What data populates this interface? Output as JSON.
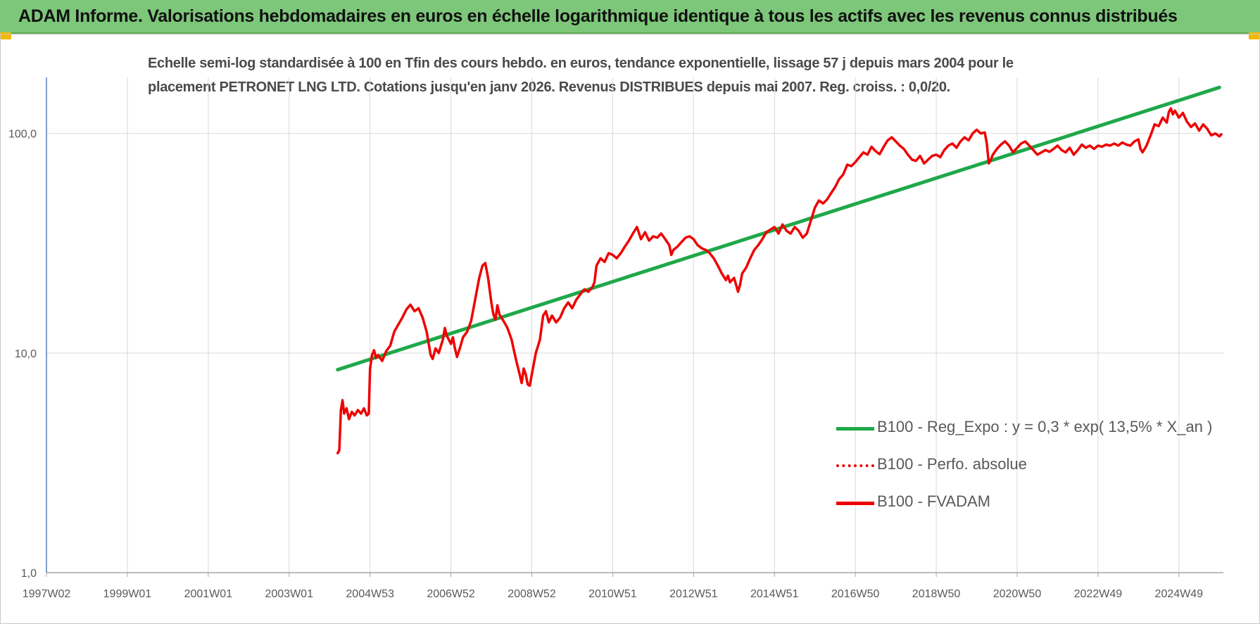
{
  "header": {
    "title": "ADAM Informe. Valorisations hebdomadaires en euros en échelle logarithmique identique à tous les actifs avec les revenus connus distribués",
    "background": "#7dc77a"
  },
  "chart_data": {
    "type": "line",
    "title_lines": [
      "Echelle semi-log standardisée à 100 en Tfin des cours hebdo. en euros, tendance exponentielle, lissage 57 j depuis mars 2004 pour le",
      "placement PETRONET LNG LTD. Cotations jusqu'en janv 2026. Revenus DISTRIBUES depuis mai 2007. Reg. croiss. : 0,0/20."
    ],
    "y_scale": "log",
    "ylim": [
      1,
      180
    ],
    "y_ticks": [
      {
        "value": 1,
        "label": "1,0"
      },
      {
        "value": 10,
        "label": "10,0"
      },
      {
        "value": 100,
        "label": "100,0"
      }
    ],
    "xlim": [
      1997.0,
      2026.1
    ],
    "x_ticks": [
      {
        "value": 1997.0,
        "label": "1997W02"
      },
      {
        "value": 1999.0,
        "label": "1999W01"
      },
      {
        "value": 2001.0,
        "label": "2001W01"
      },
      {
        "value": 2003.0,
        "label": "2003W01"
      },
      {
        "value": 2005.0,
        "label": "2004W53"
      },
      {
        "value": 2007.0,
        "label": "2006W52"
      },
      {
        "value": 2009.0,
        "label": "2008W52"
      },
      {
        "value": 2011.0,
        "label": "2010W51"
      },
      {
        "value": 2013.0,
        "label": "2012W51"
      },
      {
        "value": 2015.0,
        "label": "2014W51"
      },
      {
        "value": 2017.0,
        "label": "2016W50"
      },
      {
        "value": 2019.0,
        "label": "2018W50"
      },
      {
        "value": 2021.0,
        "label": "2020W50"
      },
      {
        "value": 2023.0,
        "label": "2022W49"
      },
      {
        "value": 2025.0,
        "label": "2024W49"
      }
    ],
    "grid": "vertical",
    "legend_position": "bottom-right",
    "series": [
      {
        "name": "B100 - Reg_Expo : y = 0,3 * exp( 13,5% * X_an )",
        "color": "#1fa84a",
        "style": "solid",
        "points": [
          [
            2004.2,
            8.4
          ],
          [
            2026.0,
            162
          ]
        ]
      },
      {
        "name": "B100 - Perfo. absolue",
        "color": "#ee0000",
        "style": "dotted",
        "points": []
      },
      {
        "name": "B100 - FVADAM",
        "color": "#ee0000",
        "style": "solid",
        "points": [
          [
            2004.2,
            3.5
          ],
          [
            2004.24,
            3.6
          ],
          [
            2004.28,
            5.5
          ],
          [
            2004.32,
            6.1
          ],
          [
            2004.36,
            5.3
          ],
          [
            2004.42,
            5.6
          ],
          [
            2004.48,
            5.0
          ],
          [
            2004.55,
            5.4
          ],
          [
            2004.62,
            5.2
          ],
          [
            2004.7,
            5.5
          ],
          [
            2004.78,
            5.3
          ],
          [
            2004.85,
            5.6
          ],
          [
            2004.92,
            5.2
          ],
          [
            2004.97,
            5.3
          ],
          [
            2005.0,
            8.5
          ],
          [
            2005.05,
            9.8
          ],
          [
            2005.1,
            10.3
          ],
          [
            2005.15,
            9.5
          ],
          [
            2005.2,
            9.8
          ],
          [
            2005.3,
            9.2
          ],
          [
            2005.4,
            10.2
          ],
          [
            2005.5,
            10.8
          ],
          [
            2005.6,
            12.5
          ],
          [
            2005.7,
            13.5
          ],
          [
            2005.8,
            14.5
          ],
          [
            2005.9,
            15.8
          ],
          [
            2006.0,
            16.6
          ],
          [
            2006.1,
            15.5
          ],
          [
            2006.2,
            16.0
          ],
          [
            2006.3,
            14.5
          ],
          [
            2006.4,
            12.5
          ],
          [
            2006.5,
            9.8
          ],
          [
            2006.55,
            9.4
          ],
          [
            2006.62,
            10.5
          ],
          [
            2006.7,
            10.0
          ],
          [
            2006.8,
            11.5
          ],
          [
            2006.85,
            13.0
          ],
          [
            2006.9,
            12.0
          ],
          [
            2007.0,
            11.0
          ],
          [
            2007.05,
            11.8
          ],
          [
            2007.1,
            10.5
          ],
          [
            2007.15,
            9.6
          ],
          [
            2007.22,
            10.5
          ],
          [
            2007.3,
            11.8
          ],
          [
            2007.4,
            12.5
          ],
          [
            2007.5,
            14.0
          ],
          [
            2007.6,
            17.5
          ],
          [
            2007.7,
            22.0
          ],
          [
            2007.78,
            25.0
          ],
          [
            2007.85,
            25.7
          ],
          [
            2007.92,
            22.0
          ],
          [
            2008.0,
            17.0
          ],
          [
            2008.05,
            15.0
          ],
          [
            2008.1,
            14.2
          ],
          [
            2008.15,
            16.5
          ],
          [
            2008.2,
            15.0
          ],
          [
            2008.3,
            14.0
          ],
          [
            2008.4,
            13.0
          ],
          [
            2008.5,
            11.5
          ],
          [
            2008.6,
            9.5
          ],
          [
            2008.7,
            8.0
          ],
          [
            2008.75,
            7.3
          ],
          [
            2008.8,
            8.5
          ],
          [
            2008.85,
            8.0
          ],
          [
            2008.9,
            7.2
          ],
          [
            2008.95,
            7.1
          ],
          [
            2009.0,
            8.0
          ],
          [
            2009.1,
            10.0
          ],
          [
            2009.2,
            11.5
          ],
          [
            2009.28,
            14.8
          ],
          [
            2009.35,
            15.5
          ],
          [
            2009.42,
            13.8
          ],
          [
            2009.5,
            14.8
          ],
          [
            2009.6,
            13.8
          ],
          [
            2009.7,
            14.5
          ],
          [
            2009.8,
            16.0
          ],
          [
            2009.9,
            17.0
          ],
          [
            2010.0,
            16.0
          ],
          [
            2010.1,
            17.5
          ],
          [
            2010.2,
            18.5
          ],
          [
            2010.3,
            19.5
          ],
          [
            2010.4,
            19.0
          ],
          [
            2010.5,
            20.0
          ],
          [
            2010.55,
            21.0
          ],
          [
            2010.6,
            25.0
          ],
          [
            2010.7,
            27.0
          ],
          [
            2010.8,
            26.0
          ],
          [
            2010.9,
            28.5
          ],
          [
            2011.0,
            28.0
          ],
          [
            2011.1,
            27.0
          ],
          [
            2011.2,
            28.5
          ],
          [
            2011.3,
            30.5
          ],
          [
            2011.4,
            32.5
          ],
          [
            2011.5,
            35.0
          ],
          [
            2011.6,
            37.5
          ],
          [
            2011.7,
            33.0
          ],
          [
            2011.8,
            35.5
          ],
          [
            2011.9,
            32.5
          ],
          [
            2012.0,
            34.0
          ],
          [
            2012.1,
            33.5
          ],
          [
            2012.2,
            35.0
          ],
          [
            2012.3,
            33.0
          ],
          [
            2012.4,
            31.0
          ],
          [
            2012.45,
            28.0
          ],
          [
            2012.5,
            29.5
          ],
          [
            2012.6,
            30.5
          ],
          [
            2012.7,
            32.0
          ],
          [
            2012.8,
            33.5
          ],
          [
            2012.9,
            34.0
          ],
          [
            2013.0,
            33.0
          ],
          [
            2013.1,
            31.0
          ],
          [
            2013.2,
            30.0
          ],
          [
            2013.3,
            29.5
          ],
          [
            2013.4,
            28.5
          ],
          [
            2013.5,
            27.0
          ],
          [
            2013.6,
            25.0
          ],
          [
            2013.7,
            23.0
          ],
          [
            2013.8,
            21.5
          ],
          [
            2013.85,
            22.5
          ],
          [
            2013.9,
            21.0
          ],
          [
            2014.0,
            22.0
          ],
          [
            2014.05,
            20.5
          ],
          [
            2014.1,
            19.0
          ],
          [
            2014.15,
            20.5
          ],
          [
            2014.2,
            23.0
          ],
          [
            2014.3,
            24.5
          ],
          [
            2014.4,
            27.0
          ],
          [
            2014.5,
            29.5
          ],
          [
            2014.6,
            31.0
          ],
          [
            2014.7,
            33.0
          ],
          [
            2014.8,
            35.5
          ],
          [
            2014.9,
            36.5
          ],
          [
            2015.0,
            37.5
          ],
          [
            2015.1,
            35.0
          ],
          [
            2015.2,
            38.5
          ],
          [
            2015.3,
            36.0
          ],
          [
            2015.4,
            35.0
          ],
          [
            2015.5,
            37.5
          ],
          [
            2015.6,
            36.0
          ],
          [
            2015.7,
            33.5
          ],
          [
            2015.8,
            35.0
          ],
          [
            2015.9,
            40.0
          ],
          [
            2016.0,
            46.0
          ],
          [
            2016.1,
            49.5
          ],
          [
            2016.2,
            48.0
          ],
          [
            2016.3,
            50.0
          ],
          [
            2016.4,
            53.5
          ],
          [
            2016.5,
            57.0
          ],
          [
            2016.6,
            62.0
          ],
          [
            2016.7,
            65.0
          ],
          [
            2016.8,
            72.0
          ],
          [
            2016.9,
            71.0
          ],
          [
            2017.0,
            74.0
          ],
          [
            2017.1,
            78.0
          ],
          [
            2017.2,
            82.0
          ],
          [
            2017.3,
            80.0
          ],
          [
            2017.4,
            87.0
          ],
          [
            2017.5,
            83.0
          ],
          [
            2017.6,
            80.5
          ],
          [
            2017.7,
            87.0
          ],
          [
            2017.8,
            93.0
          ],
          [
            2017.9,
            96.0
          ],
          [
            2018.0,
            92.0
          ],
          [
            2018.1,
            88.0
          ],
          [
            2018.2,
            85.0
          ],
          [
            2018.3,
            80.0
          ],
          [
            2018.4,
            76.0
          ],
          [
            2018.5,
            75.0
          ],
          [
            2018.6,
            79.0
          ],
          [
            2018.7,
            73.0
          ],
          [
            2018.8,
            76.0
          ],
          [
            2018.9,
            79.0
          ],
          [
            2019.0,
            80.0
          ],
          [
            2019.1,
            78.0
          ],
          [
            2019.2,
            84.0
          ],
          [
            2019.3,
            88.0
          ],
          [
            2019.4,
            90.0
          ],
          [
            2019.5,
            86.0
          ],
          [
            2019.6,
            92.0
          ],
          [
            2019.7,
            96.0
          ],
          [
            2019.8,
            93.0
          ],
          [
            2019.9,
            100.0
          ],
          [
            2020.0,
            104.0
          ],
          [
            2020.1,
            100.0
          ],
          [
            2020.2,
            101.0
          ],
          [
            2020.25,
            90.0
          ],
          [
            2020.3,
            73.0
          ],
          [
            2020.35,
            76.0
          ],
          [
            2020.4,
            80.0
          ],
          [
            2020.5,
            85.0
          ],
          [
            2020.6,
            89.0
          ],
          [
            2020.7,
            92.0
          ],
          [
            2020.8,
            88.0
          ],
          [
            2020.9,
            82.0
          ],
          [
            2021.0,
            86.0
          ],
          [
            2021.1,
            90.0
          ],
          [
            2021.2,
            92.0
          ],
          [
            2021.3,
            88.0
          ],
          [
            2021.4,
            84.0
          ],
          [
            2021.5,
            80.0
          ],
          [
            2021.6,
            82.0
          ],
          [
            2021.7,
            84.0
          ],
          [
            2021.8,
            82.5
          ],
          [
            2021.9,
            85.0
          ],
          [
            2022.0,
            88.0
          ],
          [
            2022.1,
            84.0
          ],
          [
            2022.2,
            82.0
          ],
          [
            2022.3,
            86.0
          ],
          [
            2022.4,
            80.0
          ],
          [
            2022.5,
            84.0
          ],
          [
            2022.6,
            89.0
          ],
          [
            2022.7,
            86.0
          ],
          [
            2022.8,
            88.0
          ],
          [
            2022.9,
            85.0
          ],
          [
            2023.0,
            88.0
          ],
          [
            2023.1,
            87.0
          ],
          [
            2023.2,
            89.0
          ],
          [
            2023.3,
            88.0
          ],
          [
            2023.4,
            90.0
          ],
          [
            2023.5,
            88.0
          ],
          [
            2023.6,
            91.0
          ],
          [
            2023.7,
            89.0
          ],
          [
            2023.8,
            88.0
          ],
          [
            2023.9,
            92.0
          ],
          [
            2024.0,
            94.0
          ],
          [
            2024.05,
            85.0
          ],
          [
            2024.1,
            82.0
          ],
          [
            2024.2,
            88.0
          ],
          [
            2024.3,
            98.0
          ],
          [
            2024.4,
            110.0
          ],
          [
            2024.5,
            108.0
          ],
          [
            2024.6,
            118.0
          ],
          [
            2024.7,
            112.0
          ],
          [
            2024.75,
            125.0
          ],
          [
            2024.8,
            130.0
          ],
          [
            2024.85,
            122.0
          ],
          [
            2024.9,
            127.0
          ],
          [
            2025.0,
            118.0
          ],
          [
            2025.1,
            124.0
          ],
          [
            2025.2,
            113.0
          ],
          [
            2025.3,
            107.0
          ],
          [
            2025.4,
            111.0
          ],
          [
            2025.5,
            103.0
          ],
          [
            2025.6,
            110.0
          ],
          [
            2025.7,
            105.0
          ],
          [
            2025.8,
            98.0
          ],
          [
            2025.9,
            100.0
          ],
          [
            2026.0,
            97.0
          ],
          [
            2026.05,
            99.0
          ]
        ]
      }
    ]
  }
}
